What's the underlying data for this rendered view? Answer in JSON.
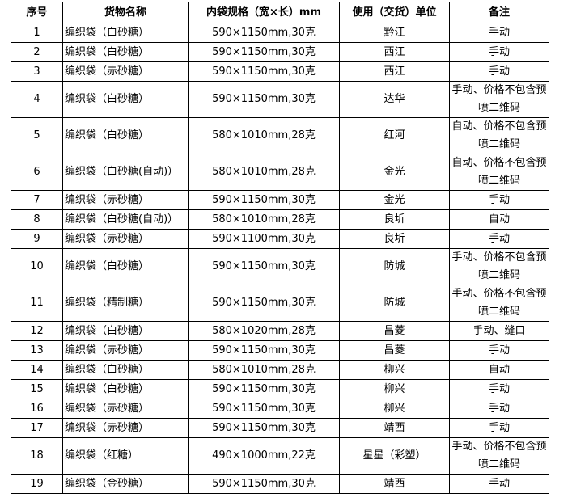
{
  "headers": [
    "序号",
    "货物名称",
    "内袋规格（宽×长）mm",
    "使用（交货）单位",
    "备注"
  ],
  "rows": [
    {
      "no": "1",
      "name": "编织袋（白砂糖）",
      "spec": "590×1150mm,30克",
      "unit": "黔江",
      "note": "手动"
    },
    {
      "no": "2",
      "name": "编织袋（白砂糖）",
      "spec": "590×1150mm,30克",
      "unit": "西江",
      "note": "手动"
    },
    {
      "no": "3",
      "name": "编织袋（赤砂糖）",
      "spec": "590×1150mm,30克",
      "unit": "西江",
      "note": "手动"
    },
    {
      "no": "4",
      "name": "编织袋（白砂糖）",
      "spec": "590×1150mm,30克",
      "unit": "达华",
      "note": "手动、价格不包含预喷二维码"
    },
    {
      "no": "5",
      "name": "编织袋（白砂糖）",
      "spec": "580×1010mm,28克",
      "unit": "红河",
      "note": "自动、价格不包含预喷二维码"
    },
    {
      "no": "6",
      "name": "编织袋（白砂糖(自动)）",
      "spec": "580×1010mm,28克",
      "unit": "金光",
      "note": "自动、价格不包含预喷二维码"
    },
    {
      "no": "7",
      "name": "编织袋（赤砂糖）",
      "spec": "590×1150mm,30克",
      "unit": "金光",
      "note": "手动"
    },
    {
      "no": "8",
      "name": "编织袋（白砂糖(自动)）",
      "spec": "580×1010mm,28克",
      "unit": "良圻",
      "note": "自动"
    },
    {
      "no": "9",
      "name": "编织袋（赤砂糖）",
      "spec": "590×1100mm,30克",
      "unit": "良圻",
      "note": "手动"
    },
    {
      "no": "10",
      "name": "编织袋（白砂糖）",
      "spec": "590×1150mm,30克",
      "unit": "防城",
      "note": "手动、价格不包含预喷二维码"
    },
    {
      "no": "11",
      "name": "编织袋（精制糖）",
      "spec": "590×1150mm,30克",
      "unit": "防城",
      "note": "手动、价格不包含预喷二维码"
    },
    {
      "no": "12",
      "name": "编织袋（白砂糖）",
      "spec": "580×1020mm,28克",
      "unit": "昌菱",
      "note": "手动、缝口"
    },
    {
      "no": "13",
      "name": "编织袋（赤砂糖）",
      "spec": "590×1150mm,30克",
      "unit": "昌菱",
      "note": "手动"
    },
    {
      "no": "14",
      "name": "编织袋（白砂糖）",
      "spec": "580×1010mm,28克",
      "unit": "柳兴",
      "note": "自动"
    },
    {
      "no": "15",
      "name": "编织袋（白砂糖）",
      "spec": "590×1150mm,30克",
      "unit": "柳兴",
      "note": "手动"
    },
    {
      "no": "16",
      "name": "编织袋（赤砂糖）",
      "spec": "590×1150mm,30克",
      "unit": "柳兴",
      "note": "手动"
    },
    {
      "no": "17",
      "name": "编织袋（赤砂糖）",
      "spec": "590×1150mm,30克",
      "unit": "靖西",
      "note": "手动"
    },
    {
      "no": "18",
      "name": "编织袋（红糖）",
      "spec": "490×1000mm,22克",
      "unit": "星星（彩塑）",
      "note": "手动、价格不包含预喷二维码"
    },
    {
      "no": "19",
      "name": "编织袋（金砂糖）",
      "spec": "590×1150mm,30克",
      "unit": "靖西",
      "note": "手动"
    }
  ]
}
